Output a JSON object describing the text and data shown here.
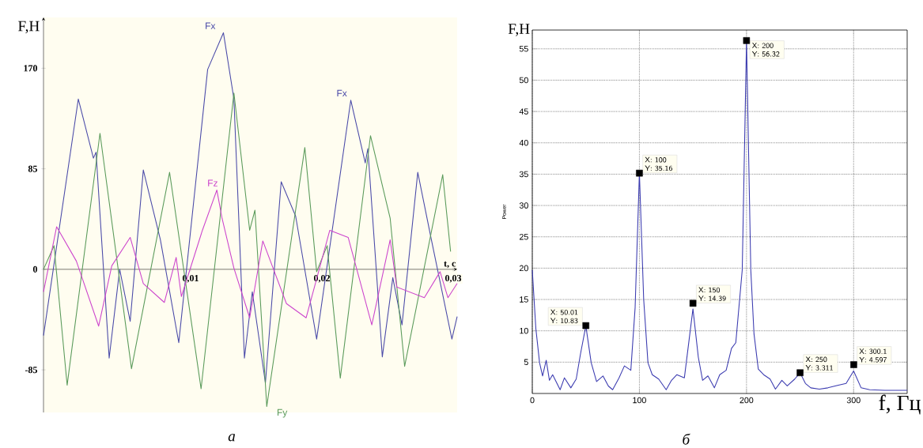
{
  "chart_data": [
    {
      "type": "line",
      "xlabel": "t, c",
      "ylabel": "F,H",
      "xlim": [
        -0.0012,
        0.0303
      ],
      "ylim": [
        -121,
        213
      ],
      "xticks": [
        {
          "value": 0.01,
          "label": "0,01"
        },
        {
          "value": 0.02,
          "label": "0,02"
        },
        {
          "value": 0.03,
          "label": "0,03"
        }
      ],
      "yticks": [
        -85,
        0,
        85,
        170
      ],
      "annotations": [
        {
          "text": "Fx",
          "x": 0.0222,
          "y": 143
        },
        "а"
      ],
      "series": [
        {
          "name": "Fx",
          "color": "#4a4aa8",
          "x": [
            -0.0012,
            0.00145,
            0.0026,
            0.0028,
            0.0038,
            0.0046,
            0.0054,
            0.0064,
            0.0077,
            0.0091,
            0.0113,
            0.0125,
            0.0133,
            0.0141,
            0.0147,
            0.0157,
            0.0169,
            0.018,
            0.0196,
            0.0222,
            0.0233,
            0.0235,
            0.0246,
            0.0254,
            0.0261,
            0.0273,
            0.0283,
            0.0299,
            0.0303
          ],
          "values": [
            -56,
            144,
            94,
            99,
            -75,
            0,
            -44,
            84,
            25,
            -62,
            169,
            200,
            144,
            -75,
            -19,
            -96,
            74,
            45,
            -59,
            143,
            90,
            102,
            -74,
            -7,
            -47,
            82,
            27,
            -59,
            -40
          ]
        },
        {
          "name": "Fy",
          "color": "#5a9a5a",
          "x": [
            -0.0012,
            -0.0004,
            0.0006,
            0.0031,
            0.0055,
            0.0084,
            0.0108,
            0.0133,
            0.0145,
            0.0149,
            0.0158,
            0.0187,
            0.0196,
            0.0204,
            0.0214,
            0.0237,
            0.0252,
            0.0263,
            0.0292,
            0.0298
          ],
          "values": [
            0,
            20,
            -98,
            115,
            -84,
            82,
            -101,
            149,
            33,
            50,
            -116,
            103,
            -2,
            20,
            -92,
            113,
            43,
            -82,
            80,
            15
          ]
        },
        {
          "name": "Fz",
          "color": "#cc44cc",
          "x": [
            -0.0012,
            -0.0002,
            0.0013,
            0.003,
            0.004,
            0.0054,
            0.0064,
            0.008,
            0.0089,
            0.0093,
            0.0109,
            0.012,
            0.0124,
            0.0133,
            0.0145,
            0.0155,
            0.0173,
            0.0188,
            0.0206,
            0.022,
            0.0238,
            0.0252,
            0.0257,
            0.0278,
            0.029,
            0.0296,
            0.0303
          ],
          "values": [
            -19,
            36,
            7,
            -48,
            3,
            27,
            -12,
            -28,
            10,
            -23,
            33,
            67,
            43,
            1,
            -41,
            24,
            -29,
            -41,
            33,
            27,
            -47,
            25,
            -15,
            -24,
            -2,
            -24,
            -12
          ]
        }
      ]
    },
    {
      "type": "line",
      "xlabel": "f, Гц",
      "ylabel": "Power",
      "xlim": [
        0,
        350
      ],
      "ylim": [
        0,
        58
      ],
      "xticks": [
        0,
        100,
        200,
        300
      ],
      "yticks": [
        5,
        10,
        15,
        20,
        25,
        30,
        35,
        40,
        45,
        50,
        55
      ],
      "grid": true,
      "annotations": [
        "F,H",
        "б",
        {
          "text": "X: 50.01 Y: 10.83",
          "x": 50.01,
          "y": 10.83
        },
        {
          "text": "X: 100 Y: 35.16",
          "x": 100,
          "y": 35.16
        },
        {
          "text": "X: 150 Y: 14.39",
          "x": 150,
          "y": 14.39
        },
        {
          "text": "X: 200 Y: 56.32",
          "x": 200,
          "y": 56.32
        },
        {
          "text": "X: 250 Y: 3.311",
          "x": 250,
          "y": 3.311
        },
        {
          "text": "X: 300.1 Y: 4.597",
          "x": 300.1,
          "y": 4.597
        }
      ],
      "series": [
        {
          "color": "#3b3bb0",
          "x": [
            0,
            3.3,
            6.8,
            9.6,
            13,
            16,
            19,
            26,
            30,
            36,
            41,
            45,
            50,
            55,
            60,
            66,
            71,
            75,
            81,
            86,
            92,
            96,
            100,
            104,
            108,
            112,
            118,
            125,
            130,
            135,
            142,
            150,
            155,
            159,
            164,
            170,
            175,
            181,
            186,
            190,
            196,
            200,
            204,
            207,
            211,
            216,
            222,
            227,
            233,
            238,
            245,
            250,
            255,
            260,
            268,
            276,
            285,
            293,
            300,
            307,
            315,
            329,
            350
          ],
          "values": [
            19.7,
            10.4,
            4.9,
            2.8,
            5.3,
            2.1,
            3,
            0.6,
            2.5,
            0.9,
            2.3,
            6.3,
            10.8,
            4.9,
            1.9,
            2.8,
            1.2,
            0.6,
            2.5,
            4.4,
            3.7,
            13.7,
            35.2,
            15,
            4.9,
            3,
            2.3,
            0.6,
            2.1,
            3,
            2.5,
            13.5,
            5.8,
            2.1,
            2.8,
            0.9,
            3,
            3.7,
            7.2,
            8.1,
            19.7,
            56.3,
            19.7,
            9.5,
            3.9,
            3,
            2.3,
            0.7,
            2.1,
            1.2,
            2.3,
            3.3,
            1.6,
            0.9,
            0.7,
            0.9,
            1.3,
            1.6,
            3.6,
            0.9,
            0.6,
            0.5,
            0.5
          ]
        },
        {
          "type": "scatter",
          "marker": "square",
          "color": "#000000",
          "x": [
            50.01,
            100,
            150,
            200,
            250,
            300.1
          ],
          "values": [
            10.83,
            35.16,
            14.39,
            56.32,
            3.311,
            4.597
          ]
        }
      ]
    }
  ]
}
